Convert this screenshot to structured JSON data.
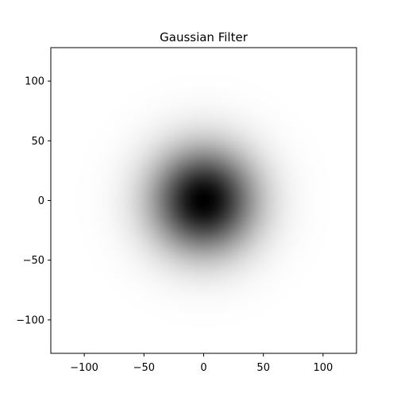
{
  "chart_data": {
    "type": "heatmap",
    "title": "Gaussian Filter",
    "xlabel": "",
    "ylabel": "",
    "xlim": [
      -128,
      128
    ],
    "ylim": [
      -128,
      128
    ],
    "x_ticks": [
      -100,
      -50,
      0,
      50,
      100
    ],
    "y_ticks": [
      100,
      50,
      0,
      -50,
      -100
    ],
    "x_tick_labels": [
      "−100",
      "−50",
      "0",
      "50",
      "100"
    ],
    "y_tick_labels": [
      "100",
      "50",
      "0",
      "−50",
      "−100"
    ],
    "colormap": "gray_r",
    "center": [
      0,
      0
    ],
    "sigma": 30,
    "peak_value": 1,
    "min_color": "#ffffff",
    "max_color": "#000000",
    "grid": false
  }
}
